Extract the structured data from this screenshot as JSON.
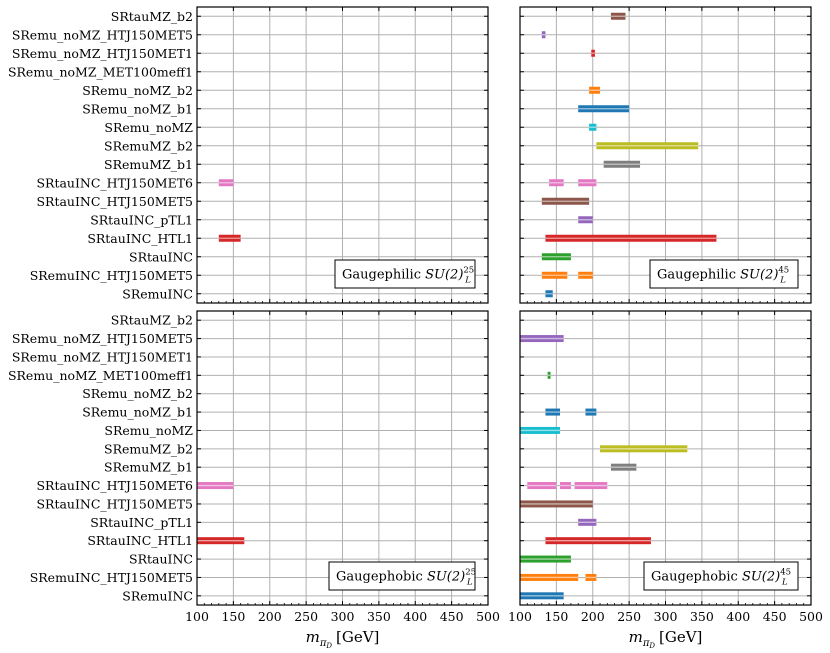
{
  "chart_data": {
    "type": "range-bar",
    "xlabel": "m_{π_D} [GeV]",
    "xlim": [
      100,
      500
    ],
    "x_ticks": [
      100,
      150,
      200,
      250,
      300,
      350,
      400,
      450,
      500
    ],
    "grid": true,
    "categories": [
      "SRtauMZ_b2",
      "SRemu_noMZ_HTJ150MET5",
      "SRemu_noMZ_HTJ150MET1",
      "SRemu_noMZ_MET100meff1",
      "SRemu_noMZ_b2",
      "SRemu_noMZ_b1",
      "SRemu_noMZ",
      "SRemuMZ_b2",
      "SRemuMZ_b1",
      "SRtauINC_HTJ150MET6",
      "SRtauINC_HTJ150MET5",
      "SRtauINC_pTL1",
      "SRtauINC_HTL1",
      "SRtauINC",
      "SRemuINC_HTJ150MET5",
      "SRemuINC"
    ],
    "colors": {
      "SRtauMZ_b2": "#8c564b",
      "SRemu_noMZ_HTJ150MET5": "#9467bd",
      "SRemu_noMZ_HTJ150MET1": "#d62728",
      "SRemu_noMZ_MET100meff1": "#2ca02c",
      "SRemu_noMZ_b2": "#ff7f0e",
      "SRemu_noMZ_b1": "#1f77b4",
      "SRemu_noMZ": "#17becf",
      "SRemuMZ_b2": "#bcbd22",
      "SRemuMZ_b1": "#7f7f7f",
      "SRtauINC_HTJ150MET6": "#e377c2",
      "SRtauINC_HTJ150MET5": "#8c564b",
      "SRtauINC_pTL1": "#9467bd",
      "SRtauINC_HTL1": "#d62728",
      "SRtauINC": "#2ca02c",
      "SRemuINC_HTJ150MET5": "#ff7f0e",
      "SRemuINC": "#1f77b4"
    },
    "panels": [
      {
        "id": "gaugephilic-25",
        "legend_prefix": "Gaugephilic",
        "legend_math": "SU(2)",
        "legend_sup": "25",
        "legend_sub": "L",
        "legend_position": "lower-right",
        "ranges": {
          "SRtauINC_HTJ150MET6": [
            [
              130,
              150
            ]
          ],
          "SRtauINC_HTL1": [
            [
              130,
              160
            ]
          ]
        }
      },
      {
        "id": "gaugephilic-45",
        "legend_prefix": "Gaugephilic",
        "legend_math": "SU(2)",
        "legend_sup": "45",
        "legend_sub": "L",
        "legend_position": "lower-right",
        "ranges": {
          "SRtauMZ_b2": [
            [
              225,
              245
            ]
          ],
          "SRemu_noMZ_HTJ150MET5": [
            [
              130,
              135
            ]
          ],
          "SRemu_noMZ_HTJ150MET1": [
            [
              198,
              203
            ]
          ],
          "SRemu_noMZ_b2": [
            [
              195,
              210
            ]
          ],
          "SRemu_noMZ_b1": [
            [
              180,
              250
            ]
          ],
          "SRemu_noMZ": [
            [
              195,
              205
            ]
          ],
          "SRemuMZ_b2": [
            [
              205,
              345
            ]
          ],
          "SRemuMZ_b1": [
            [
              215,
              265
            ]
          ],
          "SRtauINC_HTJ150MET6": [
            [
              140,
              160
            ],
            [
              180,
              205
            ]
          ],
          "SRtauINC_HTJ150MET5": [
            [
              130,
              195
            ]
          ],
          "SRtauINC_pTL1": [
            [
              180,
              200
            ]
          ],
          "SRtauINC_HTL1": [
            [
              135,
              370
            ]
          ],
          "SRtauINC": [
            [
              130,
              170
            ]
          ],
          "SRemuINC_HTJ150MET5": [
            [
              130,
              165
            ],
            [
              180,
              200
            ]
          ],
          "SRemuINC": [
            [
              135,
              145
            ]
          ]
        }
      },
      {
        "id": "gaugephobic-25",
        "legend_prefix": "Gaugephobic",
        "legend_math": "SU(2)",
        "legend_sup": "25",
        "legend_sub": "L",
        "legend_position": "lower-right",
        "ranges": {
          "SRtauINC_HTJ150MET6": [
            [
              100,
              150
            ]
          ],
          "SRtauINC_HTL1": [
            [
              100,
              165
            ]
          ]
        }
      },
      {
        "id": "gaugephobic-45",
        "legend_prefix": "Gaugephobic",
        "legend_math": "SU(2)",
        "legend_sup": "45",
        "legend_sub": "L",
        "legend_position": "lower-right",
        "ranges": {
          "SRemu_noMZ_HTJ150MET5": [
            [
              100,
              160
            ]
          ],
          "SRemu_noMZ_MET100meff1": [
            [
              138,
              142
            ]
          ],
          "SRemu_noMZ_b1": [
            [
              135,
              155
            ],
            [
              190,
              205
            ]
          ],
          "SRemu_noMZ": [
            [
              100,
              155
            ]
          ],
          "SRemuMZ_b2": [
            [
              210,
              330
            ]
          ],
          "SRemuMZ_b1": [
            [
              225,
              260
            ]
          ],
          "SRtauINC_HTJ150MET6": [
            [
              110,
              150
            ],
            [
              155,
              170
            ],
            [
              175,
              220
            ]
          ],
          "SRtauINC_HTJ150MET5": [
            [
              100,
              200
            ]
          ],
          "SRtauINC_pTL1": [
            [
              180,
              205
            ]
          ],
          "SRtauINC_HTL1": [
            [
              135,
              280
            ]
          ],
          "SRtauINC": [
            [
              100,
              170
            ]
          ],
          "SRemuINC_HTJ150MET5": [
            [
              100,
              180
            ],
            [
              190,
              205
            ]
          ],
          "SRemuINC": [
            [
              100,
              160
            ]
          ]
        }
      }
    ]
  }
}
